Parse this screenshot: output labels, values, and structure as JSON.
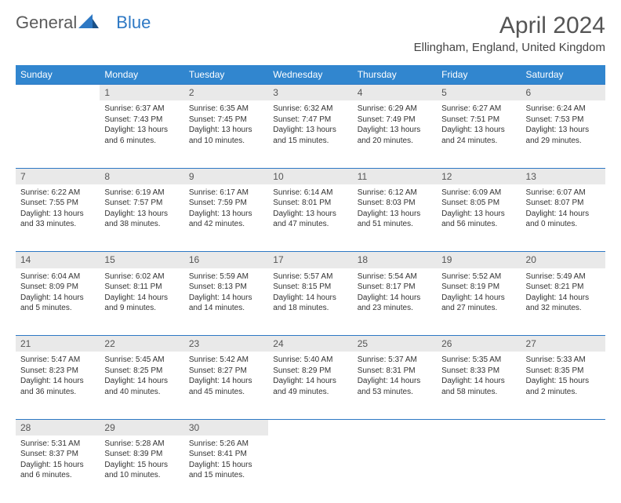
{
  "logo": {
    "part1": "General",
    "part2": "Blue"
  },
  "title": "April 2024",
  "location": "Ellingham, England, United Kingdom",
  "colors": {
    "header_bg": "#3186cf",
    "header_text": "#ffffff",
    "daynum_bg": "#e9e9e9",
    "border": "#2d78c4",
    "text": "#333333",
    "background": "#ffffff"
  },
  "weekdays": [
    "Sunday",
    "Monday",
    "Tuesday",
    "Wednesday",
    "Thursday",
    "Friday",
    "Saturday"
  ],
  "weeks": [
    {
      "nums": [
        "",
        "1",
        "2",
        "3",
        "4",
        "5",
        "6"
      ],
      "cells": [
        null,
        {
          "sunrise": "Sunrise: 6:37 AM",
          "sunset": "Sunset: 7:43 PM",
          "day1": "Daylight: 13 hours",
          "day2": "and 6 minutes."
        },
        {
          "sunrise": "Sunrise: 6:35 AM",
          "sunset": "Sunset: 7:45 PM",
          "day1": "Daylight: 13 hours",
          "day2": "and 10 minutes."
        },
        {
          "sunrise": "Sunrise: 6:32 AM",
          "sunset": "Sunset: 7:47 PM",
          "day1": "Daylight: 13 hours",
          "day2": "and 15 minutes."
        },
        {
          "sunrise": "Sunrise: 6:29 AM",
          "sunset": "Sunset: 7:49 PM",
          "day1": "Daylight: 13 hours",
          "day2": "and 20 minutes."
        },
        {
          "sunrise": "Sunrise: 6:27 AM",
          "sunset": "Sunset: 7:51 PM",
          "day1": "Daylight: 13 hours",
          "day2": "and 24 minutes."
        },
        {
          "sunrise": "Sunrise: 6:24 AM",
          "sunset": "Sunset: 7:53 PM",
          "day1": "Daylight: 13 hours",
          "day2": "and 29 minutes."
        }
      ]
    },
    {
      "nums": [
        "7",
        "8",
        "9",
        "10",
        "11",
        "12",
        "13"
      ],
      "cells": [
        {
          "sunrise": "Sunrise: 6:22 AM",
          "sunset": "Sunset: 7:55 PM",
          "day1": "Daylight: 13 hours",
          "day2": "and 33 minutes."
        },
        {
          "sunrise": "Sunrise: 6:19 AM",
          "sunset": "Sunset: 7:57 PM",
          "day1": "Daylight: 13 hours",
          "day2": "and 38 minutes."
        },
        {
          "sunrise": "Sunrise: 6:17 AM",
          "sunset": "Sunset: 7:59 PM",
          "day1": "Daylight: 13 hours",
          "day2": "and 42 minutes."
        },
        {
          "sunrise": "Sunrise: 6:14 AM",
          "sunset": "Sunset: 8:01 PM",
          "day1": "Daylight: 13 hours",
          "day2": "and 47 minutes."
        },
        {
          "sunrise": "Sunrise: 6:12 AM",
          "sunset": "Sunset: 8:03 PM",
          "day1": "Daylight: 13 hours",
          "day2": "and 51 minutes."
        },
        {
          "sunrise": "Sunrise: 6:09 AM",
          "sunset": "Sunset: 8:05 PM",
          "day1": "Daylight: 13 hours",
          "day2": "and 56 minutes."
        },
        {
          "sunrise": "Sunrise: 6:07 AM",
          "sunset": "Sunset: 8:07 PM",
          "day1": "Daylight: 14 hours",
          "day2": "and 0 minutes."
        }
      ]
    },
    {
      "nums": [
        "14",
        "15",
        "16",
        "17",
        "18",
        "19",
        "20"
      ],
      "cells": [
        {
          "sunrise": "Sunrise: 6:04 AM",
          "sunset": "Sunset: 8:09 PM",
          "day1": "Daylight: 14 hours",
          "day2": "and 5 minutes."
        },
        {
          "sunrise": "Sunrise: 6:02 AM",
          "sunset": "Sunset: 8:11 PM",
          "day1": "Daylight: 14 hours",
          "day2": "and 9 minutes."
        },
        {
          "sunrise": "Sunrise: 5:59 AM",
          "sunset": "Sunset: 8:13 PM",
          "day1": "Daylight: 14 hours",
          "day2": "and 14 minutes."
        },
        {
          "sunrise": "Sunrise: 5:57 AM",
          "sunset": "Sunset: 8:15 PM",
          "day1": "Daylight: 14 hours",
          "day2": "and 18 minutes."
        },
        {
          "sunrise": "Sunrise: 5:54 AM",
          "sunset": "Sunset: 8:17 PM",
          "day1": "Daylight: 14 hours",
          "day2": "and 23 minutes."
        },
        {
          "sunrise": "Sunrise: 5:52 AM",
          "sunset": "Sunset: 8:19 PM",
          "day1": "Daylight: 14 hours",
          "day2": "and 27 minutes."
        },
        {
          "sunrise": "Sunrise: 5:49 AM",
          "sunset": "Sunset: 8:21 PM",
          "day1": "Daylight: 14 hours",
          "day2": "and 32 minutes."
        }
      ]
    },
    {
      "nums": [
        "21",
        "22",
        "23",
        "24",
        "25",
        "26",
        "27"
      ],
      "cells": [
        {
          "sunrise": "Sunrise: 5:47 AM",
          "sunset": "Sunset: 8:23 PM",
          "day1": "Daylight: 14 hours",
          "day2": "and 36 minutes."
        },
        {
          "sunrise": "Sunrise: 5:45 AM",
          "sunset": "Sunset: 8:25 PM",
          "day1": "Daylight: 14 hours",
          "day2": "and 40 minutes."
        },
        {
          "sunrise": "Sunrise: 5:42 AM",
          "sunset": "Sunset: 8:27 PM",
          "day1": "Daylight: 14 hours",
          "day2": "and 45 minutes."
        },
        {
          "sunrise": "Sunrise: 5:40 AM",
          "sunset": "Sunset: 8:29 PM",
          "day1": "Daylight: 14 hours",
          "day2": "and 49 minutes."
        },
        {
          "sunrise": "Sunrise: 5:37 AM",
          "sunset": "Sunset: 8:31 PM",
          "day1": "Daylight: 14 hours",
          "day2": "and 53 minutes."
        },
        {
          "sunrise": "Sunrise: 5:35 AM",
          "sunset": "Sunset: 8:33 PM",
          "day1": "Daylight: 14 hours",
          "day2": "and 58 minutes."
        },
        {
          "sunrise": "Sunrise: 5:33 AM",
          "sunset": "Sunset: 8:35 PM",
          "day1": "Daylight: 15 hours",
          "day2": "and 2 minutes."
        }
      ]
    },
    {
      "nums": [
        "28",
        "29",
        "30",
        "",
        "",
        "",
        ""
      ],
      "cells": [
        {
          "sunrise": "Sunrise: 5:31 AM",
          "sunset": "Sunset: 8:37 PM",
          "day1": "Daylight: 15 hours",
          "day2": "and 6 minutes."
        },
        {
          "sunrise": "Sunrise: 5:28 AM",
          "sunset": "Sunset: 8:39 PM",
          "day1": "Daylight: 15 hours",
          "day2": "and 10 minutes."
        },
        {
          "sunrise": "Sunrise: 5:26 AM",
          "sunset": "Sunset: 8:41 PM",
          "day1": "Daylight: 15 hours",
          "day2": "and 15 minutes."
        },
        null,
        null,
        null,
        null
      ]
    }
  ]
}
